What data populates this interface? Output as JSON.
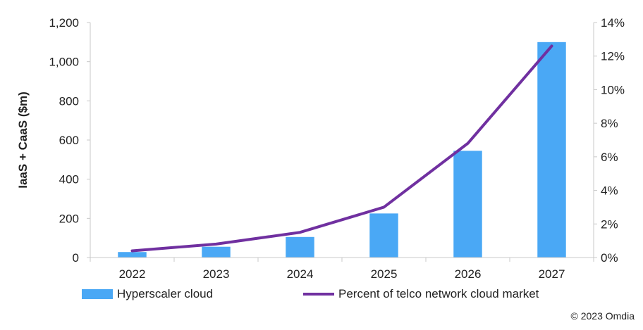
{
  "chart_data": {
    "type": "bar",
    "categories": [
      "2022",
      "2023",
      "2024",
      "2025",
      "2026",
      "2027"
    ],
    "series": [
      {
        "name": "Hyperscaler cloud",
        "type": "bar",
        "axis": "left",
        "values": [
          28,
          55,
          105,
          225,
          545,
          1100
        ],
        "color": "#4aa8f5"
      },
      {
        "name": "Percent of telco network cloud market",
        "type": "line",
        "axis": "right",
        "values": [
          0.4,
          0.8,
          1.5,
          3.0,
          6.8,
          12.6
        ],
        "color": "#7030a0"
      }
    ],
    "ylabel": "IaaS + CaaS ($m)",
    "ylim": [
      0,
      1200
    ],
    "yticks": [
      "0",
      "200",
      "400",
      "600",
      "800",
      "1,000",
      "1,200"
    ],
    "y2lim": [
      0,
      14
    ],
    "y2ticks": [
      "0%",
      "2%",
      "4%",
      "6%",
      "8%",
      "10%",
      "12%",
      "14%"
    ],
    "grid": false,
    "legend_position": "bottom"
  },
  "copyright": "© 2023 Omdia"
}
